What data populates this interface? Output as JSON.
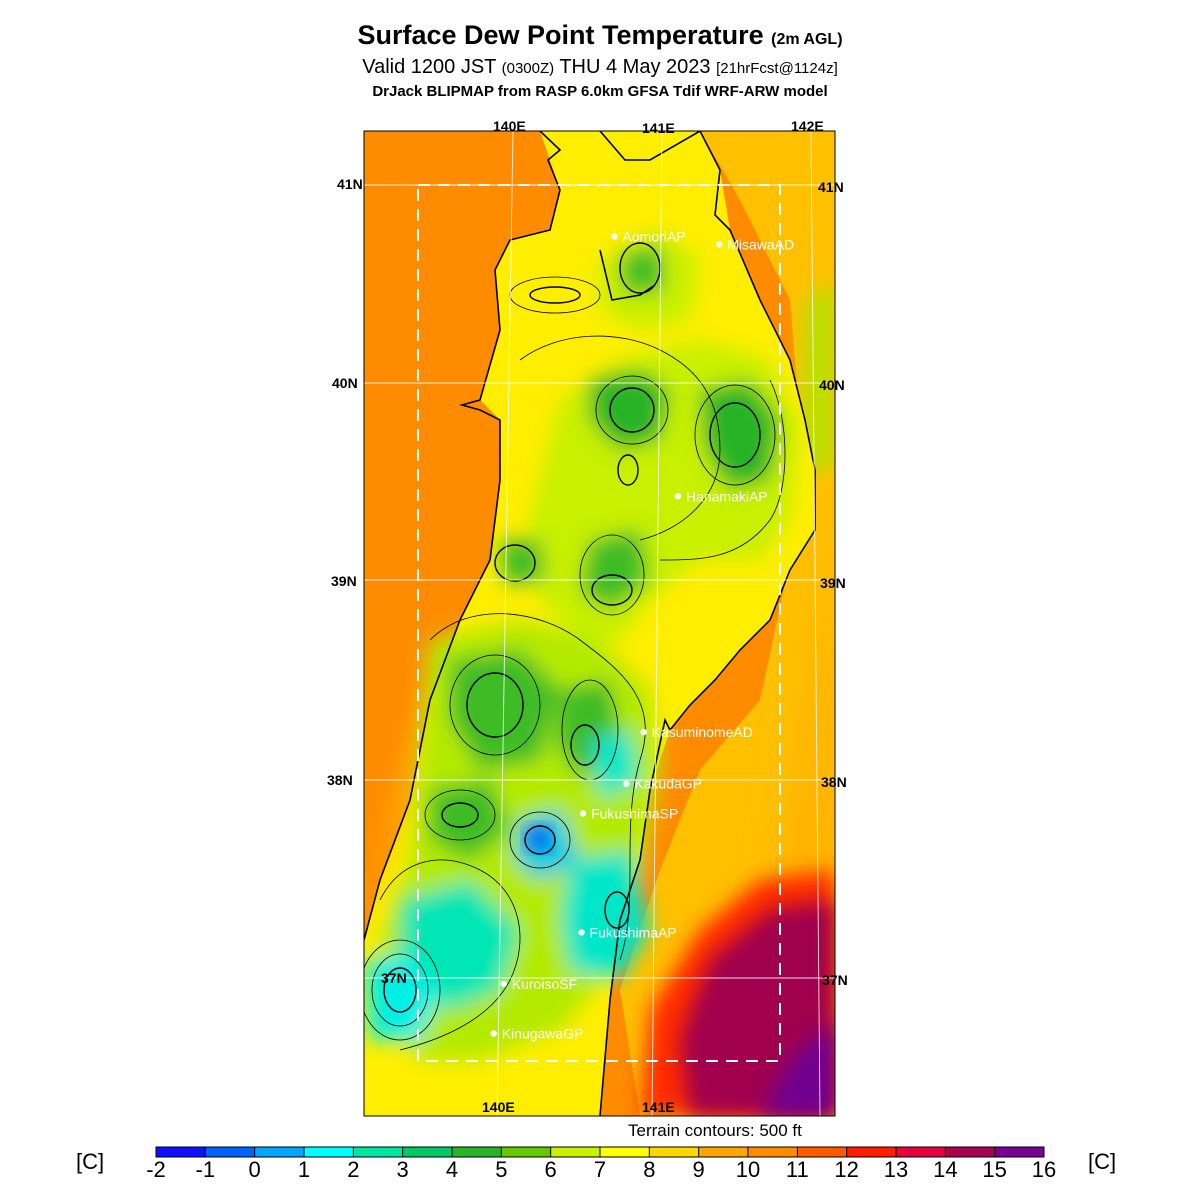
{
  "header": {
    "title": "Surface Dew Point Temperature",
    "title_suffix": "(2m AGL)",
    "valid_prefix": "Valid 1200 JST",
    "valid_utc": "(0300Z)",
    "valid_date": "THU 4 May 2023",
    "forecast": "[21hrFcst@1124z]",
    "model_line": "DrJack BLIPMAP from RASP 6.0km GFSA Tdif WRF-ARW model"
  },
  "map": {
    "lon_labels_top": [
      "140E",
      "141E",
      "142E"
    ],
    "lon_labels_bottom": [
      "140E",
      "141E"
    ],
    "lat_labels": [
      "41N",
      "40N",
      "39N",
      "38N",
      "37N"
    ],
    "stations": [
      {
        "name": "AomoriAP",
        "lat": 40.74,
        "lon": 140.69
      },
      {
        "name": "MisawaAD",
        "lat": 40.7,
        "lon": 141.39
      },
      {
        "name": "HanamakiAP",
        "lat": 39.43,
        "lon": 141.13
      },
      {
        "name": "KasuminomeAD",
        "lat": 38.24,
        "lon": 140.92
      },
      {
        "name": "KakudaGP",
        "lat": 37.98,
        "lon": 140.81
      },
      {
        "name": "FukushimaSP",
        "lat": 37.83,
        "lon": 140.53
      },
      {
        "name": "FukushimaAP",
        "lat": 37.23,
        "lon": 140.53
      },
      {
        "name": "KuroisoSF",
        "lat": 36.97,
        "lon": 140.03
      },
      {
        "name": "KinugawaGP",
        "lat": 36.72,
        "lon": 139.97
      }
    ],
    "colors": {
      "sea_west": "#ff8c00",
      "sea_east": "#ffbf00",
      "sea_southeast": "#8b0050",
      "land_dry": "#ffee00",
      "land_moist": "#22b422",
      "land_cyan": "#00e6d2",
      "coast": "#000000"
    }
  },
  "colorbar": {
    "unit": "[C]",
    "ticks": [
      "-2",
      "-1",
      "0",
      "1",
      "2",
      "3",
      "4",
      "5",
      "6",
      "7",
      "8",
      "9",
      "10",
      "11",
      "12",
      "13",
      "14",
      "15",
      "16"
    ],
    "colors": [
      "#1010ff",
      "#0063ff",
      "#00a5ff",
      "#00ffff",
      "#00e6a0",
      "#00c864",
      "#28b428",
      "#64c800",
      "#c8f000",
      "#ffff00",
      "#ffd700",
      "#ffa500",
      "#ff8c00",
      "#ff5a00",
      "#ff1e00",
      "#e6003c",
      "#aa0050",
      "#780096"
    ],
    "terrain_note": "Terrain contours: 500 ft"
  }
}
